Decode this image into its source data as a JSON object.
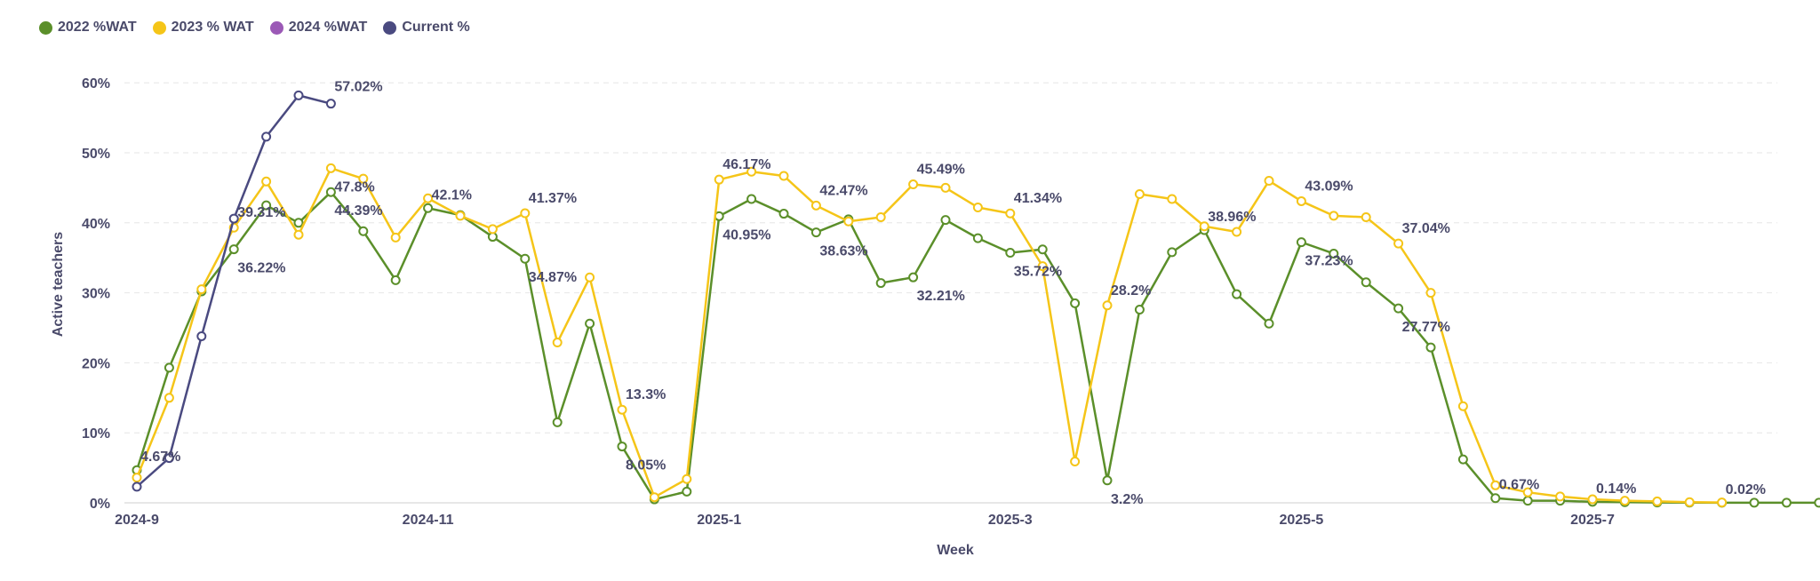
{
  "chart_data": {
    "type": "line",
    "xlabel": "Week",
    "ylabel": "Active teachers",
    "y_ticks": [
      "0%",
      "10%",
      "20%",
      "30%",
      "40%",
      "50%",
      "60%"
    ],
    "ylim": [
      0,
      60
    ],
    "x_ticks": [
      {
        "label": "2024-9",
        "week": 0
      },
      {
        "label": "2024-11",
        "week": 9
      },
      {
        "label": "2025-1",
        "week": 18
      },
      {
        "label": "2025-3",
        "week": 27
      },
      {
        "label": "2025-5",
        "week": 36
      },
      {
        "label": "2025-7",
        "week": 45
      }
    ],
    "grid": true,
    "legend_position": "top-left",
    "series": [
      {
        "name": "2022 %WAT",
        "color": "#5b8f2a",
        "x": [
          0,
          1,
          2,
          3,
          4,
          5,
          6,
          7,
          8,
          9,
          10,
          11,
          12,
          13,
          14,
          15,
          16,
          17,
          18,
          19,
          20,
          21,
          22,
          23,
          24,
          25,
          26,
          27,
          28,
          29,
          30,
          31,
          32,
          33,
          34,
          35,
          36,
          37,
          38,
          39,
          40,
          41,
          42,
          43,
          44,
          45,
          46,
          47,
          48,
          49,
          50,
          51,
          52,
          53,
          54,
          55
        ],
        "values": [
          4.67,
          19.3,
          30.2,
          36.22,
          42.5,
          40.0,
          44.39,
          38.8,
          31.8,
          42.1,
          41.1,
          38.0,
          34.87,
          11.5,
          25.6,
          8.05,
          0.5,
          1.6,
          40.95,
          43.4,
          41.3,
          38.63,
          40.5,
          31.4,
          32.21,
          40.4,
          37.8,
          35.72,
          36.2,
          28.5,
          3.2,
          27.6,
          35.8,
          38.96,
          29.8,
          25.6,
          37.23,
          35.6,
          31.5,
          27.77,
          22.2,
          6.2,
          0.67,
          0.3,
          0.3,
          0.14,
          0.1,
          0.05,
          0.03,
          0.02,
          0.02,
          0.02,
          0.02,
          0.02,
          0.02,
          0.02
        ]
      },
      {
        "name": "2023 % WAT",
        "color": "#f5c518",
        "x": [
          0,
          1,
          2,
          3,
          4,
          5,
          6,
          7,
          8,
          9,
          10,
          11,
          12,
          13,
          14,
          15,
          16,
          17,
          18,
          19,
          20,
          21,
          22,
          23,
          24,
          25,
          26,
          27,
          28,
          29,
          30,
          31,
          32,
          33,
          34,
          35,
          36,
          37,
          38,
          39,
          40,
          41,
          42,
          43,
          44,
          45,
          46,
          47,
          48,
          49
        ],
        "values": [
          3.6,
          15.0,
          30.5,
          39.31,
          45.9,
          38.3,
          47.8,
          46.3,
          37.9,
          43.5,
          41.0,
          39.1,
          41.37,
          22.9,
          32.2,
          13.3,
          0.8,
          3.4,
          46.17,
          47.3,
          46.7,
          42.47,
          40.2,
          40.8,
          45.49,
          45.0,
          42.2,
          41.34,
          33.8,
          5.9,
          28.2,
          44.1,
          43.4,
          39.5,
          38.7,
          46.0,
          43.09,
          41.0,
          40.8,
          37.04,
          30.0,
          13.8,
          2.5,
          1.5,
          0.9,
          0.5,
          0.3,
          0.2,
          0.1,
          0.05
        ]
      },
      {
        "name": "2024 %WAT",
        "color": "#9b59b6",
        "x": [],
        "values": []
      },
      {
        "name": "Current %",
        "color": "#4a4a80",
        "x": [
          0,
          1,
          2,
          3,
          4,
          5,
          6
        ],
        "values": [
          2.3,
          6.4,
          23.8,
          40.6,
          52.3,
          58.2,
          57.02
        ]
      }
    ],
    "data_labels": [
      {
        "text": "4.67%",
        "series": 0,
        "week": 0,
        "value": 4.67
      },
      {
        "text": "36.22%",
        "series": 0,
        "week": 3,
        "value": 36.22
      },
      {
        "text": "39.31%",
        "series": 1,
        "week": 3,
        "value": 39.31
      },
      {
        "text": "57.02%",
        "series": 3,
        "week": 6,
        "value": 57.02
      },
      {
        "text": "47.8%",
        "series": 1,
        "week": 6,
        "value": 47.8
      },
      {
        "text": "44.39%",
        "series": 0,
        "week": 6,
        "value": 44.39
      },
      {
        "text": "42.1%",
        "series": 0,
        "week": 9,
        "value": 42.1
      },
      {
        "text": "41.37%",
        "series": 1,
        "week": 12,
        "value": 41.37
      },
      {
        "text": "34.87%",
        "series": 0,
        "week": 12,
        "value": 34.87
      },
      {
        "text": "13.3%",
        "series": 1,
        "week": 15,
        "value": 13.3
      },
      {
        "text": "8.05%",
        "series": 0,
        "week": 15,
        "value": 8.05
      },
      {
        "text": "46.17%",
        "series": 1,
        "week": 18,
        "value": 46.17
      },
      {
        "text": "40.95%",
        "series": 0,
        "week": 18,
        "value": 40.95
      },
      {
        "text": "42.47%",
        "series": 1,
        "week": 21,
        "value": 42.47
      },
      {
        "text": "38.63%",
        "series": 0,
        "week": 21,
        "value": 38.63
      },
      {
        "text": "45.49%",
        "series": 1,
        "week": 24,
        "value": 45.49
      },
      {
        "text": "32.21%",
        "series": 0,
        "week": 24,
        "value": 32.21
      },
      {
        "text": "41.34%",
        "series": 1,
        "week": 27,
        "value": 41.34
      },
      {
        "text": "35.72%",
        "series": 0,
        "week": 27,
        "value": 35.72
      },
      {
        "text": "28.2%",
        "series": 1,
        "week": 30,
        "value": 28.2
      },
      {
        "text": "3.2%",
        "series": 0,
        "week": 30,
        "value": 3.2
      },
      {
        "text": "38.96%",
        "series": 0,
        "week": 33,
        "value": 38.96
      },
      {
        "text": "43.09%",
        "series": 1,
        "week": 36,
        "value": 43.09
      },
      {
        "text": "37.23%",
        "series": 0,
        "week": 36,
        "value": 37.23
      },
      {
        "text": "37.04%",
        "series": 1,
        "week": 39,
        "value": 37.04
      },
      {
        "text": "27.77%",
        "series": 0,
        "week": 39,
        "value": 27.77
      },
      {
        "text": "0.67%",
        "series": 0,
        "week": 42,
        "value": 0.67
      },
      {
        "text": "0.14%",
        "series": 0,
        "week": 45,
        "value": 0.14
      },
      {
        "text": "0.02%",
        "series": 0,
        "week": 49,
        "value": 0.02
      },
      {
        "text": "0.02%",
        "series": 0,
        "week": 52,
        "value": 0.02
      }
    ]
  }
}
